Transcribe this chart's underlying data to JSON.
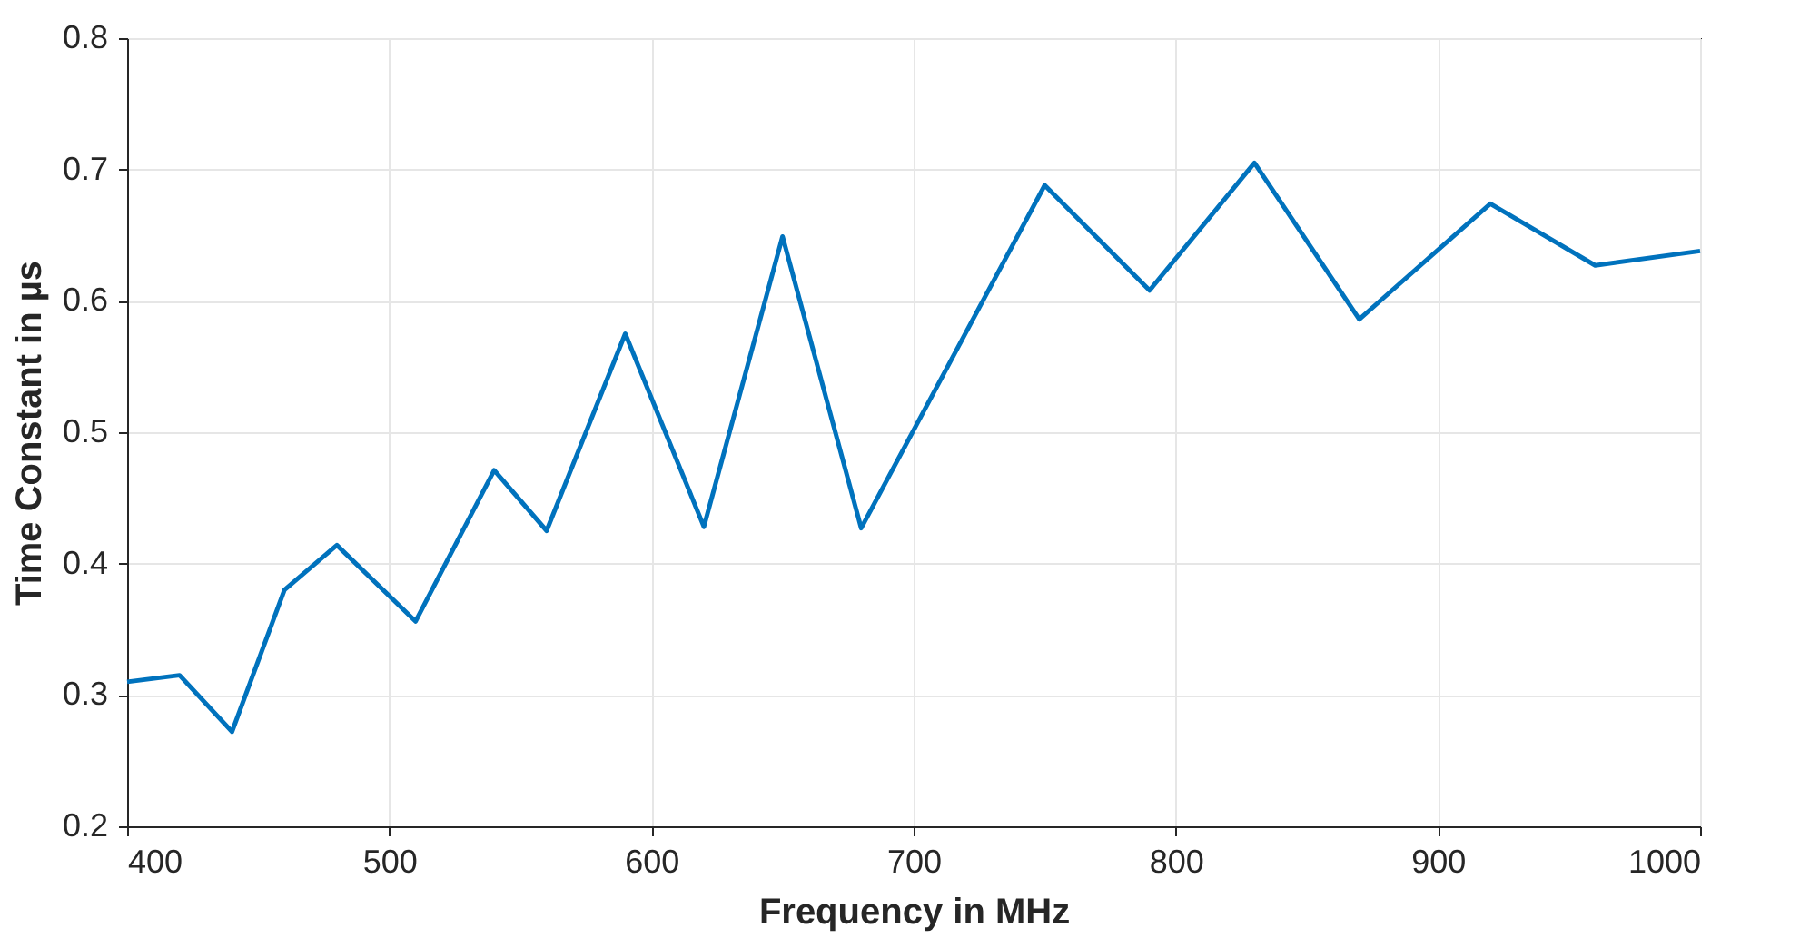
{
  "chart_data": {
    "type": "line",
    "xlabel": "Frequency in MHz",
    "ylabel": "Time Constant in µs",
    "x": [
      400,
      420,
      440,
      460,
      480,
      510,
      540,
      560,
      590,
      620,
      650,
      680,
      750,
      790,
      830,
      870,
      920,
      960,
      1000
    ],
    "series": [
      {
        "color": "#0072bd",
        "values": [
          0.31,
          0.315,
          0.272,
          0.38,
          0.414,
          0.356,
          0.471,
          0.425,
          0.575,
          0.428,
          0.649,
          0.427,
          0.688,
          0.608,
          0.705,
          0.586,
          0.674,
          0.627,
          0.638
        ]
      }
    ],
    "xlim": [
      400,
      1000
    ],
    "xticks": [
      400,
      500,
      600,
      700,
      800,
      900,
      1000
    ],
    "ylim": [
      0.2,
      0.8
    ],
    "yticks": [
      0.2,
      0.3,
      0.4,
      0.5,
      0.6,
      0.7,
      0.8
    ],
    "grid": true,
    "marker": "none",
    "line_style": "solid"
  }
}
